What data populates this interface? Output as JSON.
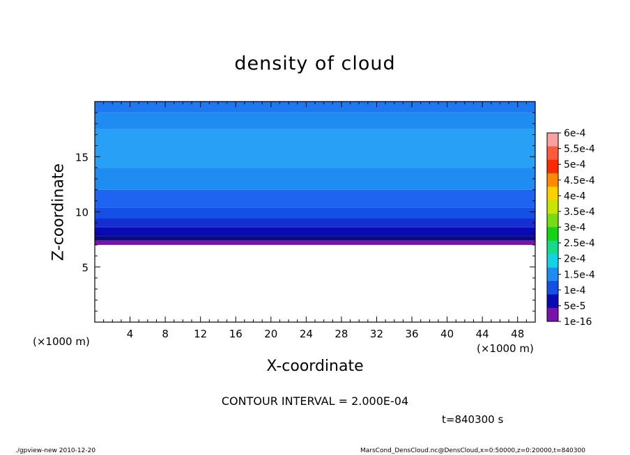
{
  "chart_data": {
    "type": "heatmap",
    "title": "density of cloud",
    "xlabel": "X-coordinate",
    "ylabel": "Z-coordinate",
    "x_unit_left": "(×1000 m)",
    "x_unit_right": "(×1000 m)",
    "xlim": [
      0,
      50
    ],
    "ylim": [
      0,
      20
    ],
    "x_ticks": [
      4,
      8,
      12,
      16,
      20,
      24,
      28,
      32,
      36,
      40,
      44,
      48
    ],
    "y_ticks": [
      5,
      10,
      15
    ],
    "colorbar_labels": [
      "6e-4",
      "5.5e-4",
      "5e-4",
      "4.5e-4",
      "4e-4",
      "3.5e-4",
      "3e-4",
      "2.5e-4",
      "2e-4",
      "1.5e-4",
      "1e-4",
      "5e-5",
      "1e-16"
    ],
    "colorbar_colors": [
      "#f7a0a0",
      "#ff5a3c",
      "#ff2a00",
      "#ff8c00",
      "#ffd000",
      "#c8e400",
      "#78dc14",
      "#14d414",
      "#14dc8c",
      "#14d2e6",
      "#1e8cf0",
      "#1450e6",
      "#0a0ab4",
      "#7814aa"
    ],
    "field_bands": [
      {
        "z_from": 7.0,
        "z_to": 7.4,
        "color": "#7814aa"
      },
      {
        "z_from": 7.4,
        "z_to": 7.8,
        "color": "#0a0a78"
      },
      {
        "z_from": 7.8,
        "z_to": 8.6,
        "color": "#0a0ab4"
      },
      {
        "z_from": 8.6,
        "z_to": 9.4,
        "color": "#1430d2"
      },
      {
        "z_from": 9.4,
        "z_to": 10.4,
        "color": "#1450e6"
      },
      {
        "z_from": 10.4,
        "z_to": 12.0,
        "color": "#1e64f0"
      },
      {
        "z_from": 12.0,
        "z_to": 14.0,
        "color": "#1e8cf0"
      },
      {
        "z_from": 14.0,
        "z_to": 17.5,
        "color": "#28a0f5"
      },
      {
        "z_from": 17.5,
        "z_to": 19.0,
        "color": "#1e8cf0"
      },
      {
        "z_from": 19.0,
        "z_to": 20.0,
        "color": "#1e78f0"
      }
    ],
    "contour_interval": "CONTOUR INTERVAL = 2.000E-04",
    "time": "t=840300 s"
  },
  "footer": {
    "left": "./gpview-new  2010-12-20",
    "right": "MarsCond_DensCloud.nc@DensCloud,x=0:50000,z=0:20000,t=840300"
  }
}
